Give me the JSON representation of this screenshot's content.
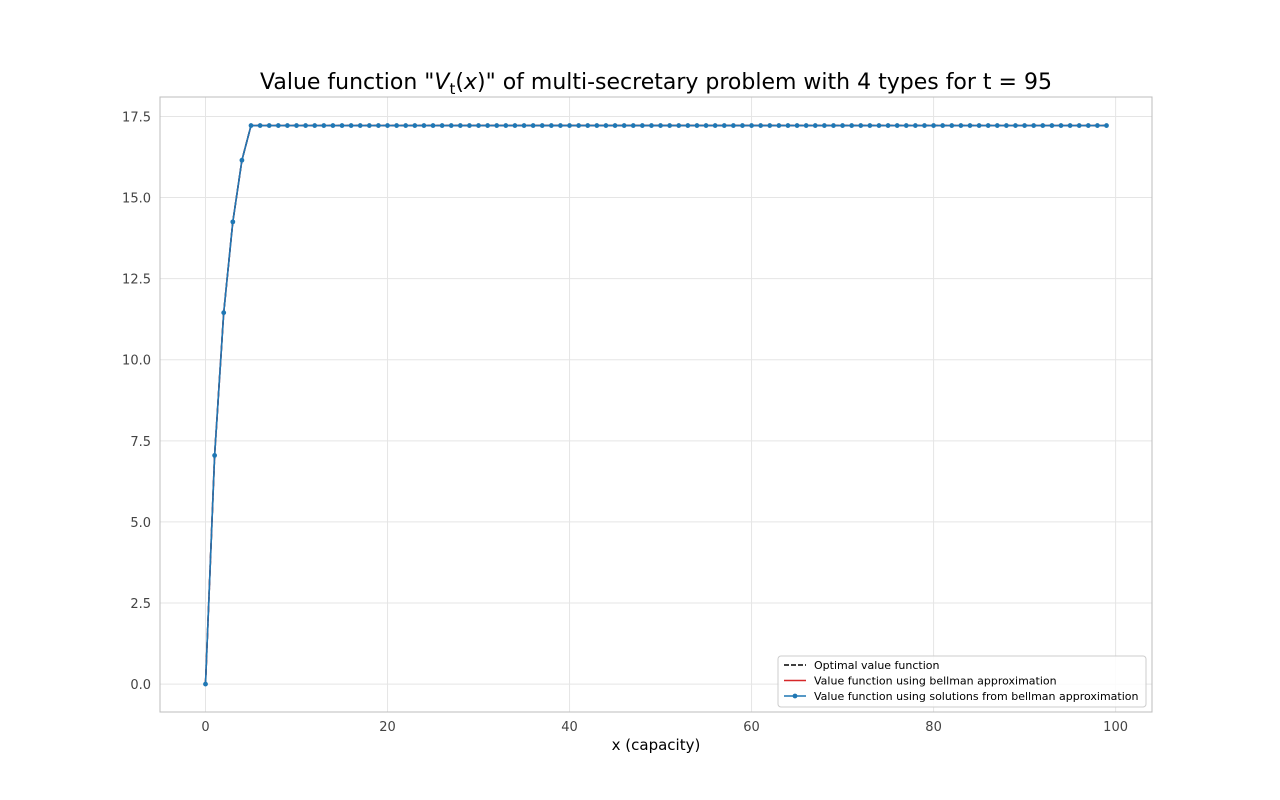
{
  "chart_data": {
    "type": "line",
    "title": "Value function \"V_t(x)\" of multi-secretary problem with 4 types for t = 95",
    "title_parts": {
      "prefix": "Value function \"",
      "var": "V",
      "sub": "t",
      "open": "(",
      "arg": "x",
      "close": ")",
      "suffix": "\" of multi-secretary problem with 4 types for t = 95"
    },
    "xlabel": "x (capacity)",
    "ylabel": "",
    "xlim": [
      -5,
      104
    ],
    "ylim": [
      -0.86,
      18.1
    ],
    "xticks": [
      0,
      20,
      40,
      60,
      80,
      100
    ],
    "yticks": [
      0.0,
      2.5,
      5.0,
      7.5,
      10.0,
      12.5,
      15.0,
      17.5
    ],
    "ytick_labels": [
      "0.0",
      "2.5",
      "5.0",
      "7.5",
      "10.0",
      "12.5",
      "15.0",
      "17.5"
    ],
    "grid": true,
    "legend_position": "lower-right",
    "x": [
      0,
      1,
      2,
      3,
      4,
      5,
      6,
      7,
      8,
      9,
      10,
      11,
      12,
      13,
      14,
      15,
      16,
      17,
      18,
      19,
      20,
      21,
      22,
      23,
      24,
      25,
      26,
      27,
      28,
      29,
      30,
      31,
      32,
      33,
      34,
      35,
      36,
      37,
      38,
      39,
      40,
      41,
      42,
      43,
      44,
      45,
      46,
      47,
      48,
      49,
      50,
      51,
      52,
      53,
      54,
      55,
      56,
      57,
      58,
      59,
      60,
      61,
      62,
      63,
      64,
      65,
      66,
      67,
      68,
      69,
      70,
      71,
      72,
      73,
      74,
      75,
      76,
      77,
      78,
      79,
      80,
      81,
      82,
      83,
      84,
      85,
      86,
      87,
      88,
      89,
      90,
      91,
      92,
      93,
      94,
      95,
      96,
      97,
      98,
      99
    ],
    "series": [
      {
        "name": "Optimal value function",
        "color": "#000000",
        "style": "dashed",
        "values": [
          0.0,
          7.05,
          11.45,
          14.25,
          16.15,
          17.22,
          17.22,
          17.22,
          17.22,
          17.22,
          17.22,
          17.22,
          17.22,
          17.22,
          17.22,
          17.22,
          17.22,
          17.22,
          17.22,
          17.22,
          17.22,
          17.22,
          17.22,
          17.22,
          17.22,
          17.22,
          17.22,
          17.22,
          17.22,
          17.22,
          17.22,
          17.22,
          17.22,
          17.22,
          17.22,
          17.22,
          17.22,
          17.22,
          17.22,
          17.22,
          17.22,
          17.22,
          17.22,
          17.22,
          17.22,
          17.22,
          17.22,
          17.22,
          17.22,
          17.22,
          17.22,
          17.22,
          17.22,
          17.22,
          17.22,
          17.22,
          17.22,
          17.22,
          17.22,
          17.22,
          17.22,
          17.22,
          17.22,
          17.22,
          17.22,
          17.22,
          17.22,
          17.22,
          17.22,
          17.22,
          17.22,
          17.22,
          17.22,
          17.22,
          17.22,
          17.22,
          17.22,
          17.22,
          17.22,
          17.22,
          17.22,
          17.22,
          17.22,
          17.22,
          17.22,
          17.22,
          17.22,
          17.22,
          17.22,
          17.22,
          17.22,
          17.22,
          17.22,
          17.22,
          17.22,
          17.22,
          17.22,
          17.22,
          17.22,
          17.22
        ]
      },
      {
        "name": "Value function using bellman approximation",
        "color": "#d62728",
        "style": "solid",
        "values": [
          0.0,
          7.05,
          11.45,
          14.25,
          16.15,
          17.22,
          17.22,
          17.22,
          17.22,
          17.22,
          17.22,
          17.22,
          17.22,
          17.22,
          17.22,
          17.22,
          17.22,
          17.22,
          17.22,
          17.22,
          17.22,
          17.22,
          17.22,
          17.22,
          17.22,
          17.22,
          17.22,
          17.22,
          17.22,
          17.22,
          17.22,
          17.22,
          17.22,
          17.22,
          17.22,
          17.22,
          17.22,
          17.22,
          17.22,
          17.22,
          17.22,
          17.22,
          17.22,
          17.22,
          17.22,
          17.22,
          17.22,
          17.22,
          17.22,
          17.22,
          17.22,
          17.22,
          17.22,
          17.22,
          17.22,
          17.22,
          17.22,
          17.22,
          17.22,
          17.22,
          17.22,
          17.22,
          17.22,
          17.22,
          17.22,
          17.22,
          17.22,
          17.22,
          17.22,
          17.22,
          17.22,
          17.22,
          17.22,
          17.22,
          17.22,
          17.22,
          17.22,
          17.22,
          17.22,
          17.22,
          17.22,
          17.22,
          17.22,
          17.22,
          17.22,
          17.22,
          17.22,
          17.22,
          17.22,
          17.22,
          17.22,
          17.22,
          17.22,
          17.22,
          17.22,
          17.22,
          17.22,
          17.22,
          17.22,
          17.22
        ]
      },
      {
        "name": "Value function using solutions from bellman approximation",
        "color": "#1f77b4",
        "style": "solid-markers",
        "values": [
          0.0,
          7.05,
          11.45,
          14.25,
          16.15,
          17.22,
          17.22,
          17.22,
          17.22,
          17.22,
          17.22,
          17.22,
          17.22,
          17.22,
          17.22,
          17.22,
          17.22,
          17.22,
          17.22,
          17.22,
          17.22,
          17.22,
          17.22,
          17.22,
          17.22,
          17.22,
          17.22,
          17.22,
          17.22,
          17.22,
          17.22,
          17.22,
          17.22,
          17.22,
          17.22,
          17.22,
          17.22,
          17.22,
          17.22,
          17.22,
          17.22,
          17.22,
          17.22,
          17.22,
          17.22,
          17.22,
          17.22,
          17.22,
          17.22,
          17.22,
          17.22,
          17.22,
          17.22,
          17.22,
          17.22,
          17.22,
          17.22,
          17.22,
          17.22,
          17.22,
          17.22,
          17.22,
          17.22,
          17.22,
          17.22,
          17.22,
          17.22,
          17.22,
          17.22,
          17.22,
          17.22,
          17.22,
          17.22,
          17.22,
          17.22,
          17.22,
          17.22,
          17.22,
          17.22,
          17.22,
          17.22,
          17.22,
          17.22,
          17.22,
          17.22,
          17.22,
          17.22,
          17.22,
          17.22,
          17.22,
          17.22,
          17.22,
          17.22,
          17.22,
          17.22,
          17.22,
          17.22,
          17.22,
          17.22,
          17.22
        ]
      }
    ]
  }
}
